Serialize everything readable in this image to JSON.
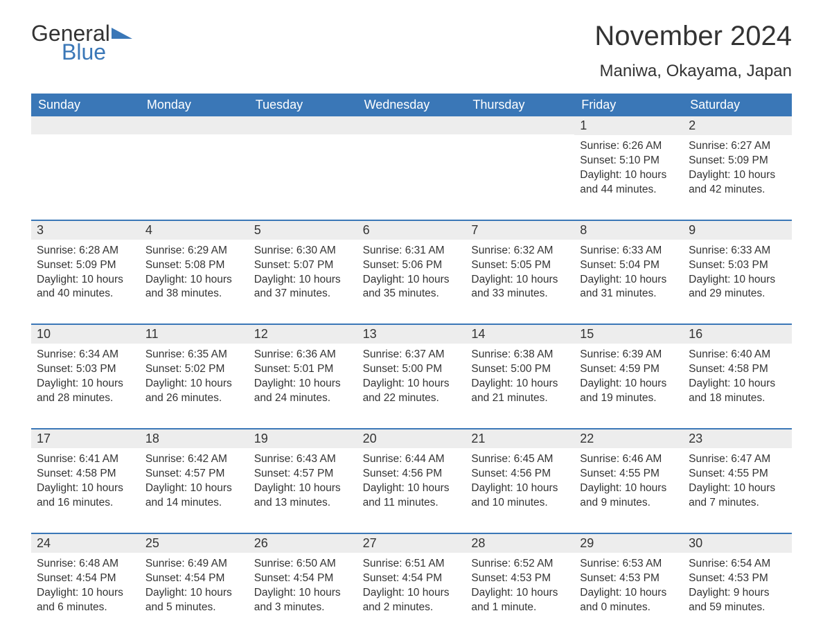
{
  "logo": {
    "text1": "General",
    "text2": "Blue"
  },
  "title": "November 2024",
  "location": "Maniwa, Okayama, Japan",
  "colors": {
    "header_bg": "#3a77b7",
    "header_text": "#ffffff",
    "daynum_bg": "#ededed",
    "text": "#333333",
    "row_border": "#3a77b7",
    "page_bg": "#ffffff"
  },
  "day_names": [
    "Sunday",
    "Monday",
    "Tuesday",
    "Wednesday",
    "Thursday",
    "Friday",
    "Saturday"
  ],
  "weeks": [
    [
      null,
      null,
      null,
      null,
      null,
      {
        "n": "1",
        "sunrise": "Sunrise: 6:26 AM",
        "sunset": "Sunset: 5:10 PM",
        "daylight": "Daylight: 10 hours and 44 minutes."
      },
      {
        "n": "2",
        "sunrise": "Sunrise: 6:27 AM",
        "sunset": "Sunset: 5:09 PM",
        "daylight": "Daylight: 10 hours and 42 minutes."
      }
    ],
    [
      {
        "n": "3",
        "sunrise": "Sunrise: 6:28 AM",
        "sunset": "Sunset: 5:09 PM",
        "daylight": "Daylight: 10 hours and 40 minutes."
      },
      {
        "n": "4",
        "sunrise": "Sunrise: 6:29 AM",
        "sunset": "Sunset: 5:08 PM",
        "daylight": "Daylight: 10 hours and 38 minutes."
      },
      {
        "n": "5",
        "sunrise": "Sunrise: 6:30 AM",
        "sunset": "Sunset: 5:07 PM",
        "daylight": "Daylight: 10 hours and 37 minutes."
      },
      {
        "n": "6",
        "sunrise": "Sunrise: 6:31 AM",
        "sunset": "Sunset: 5:06 PM",
        "daylight": "Daylight: 10 hours and 35 minutes."
      },
      {
        "n": "7",
        "sunrise": "Sunrise: 6:32 AM",
        "sunset": "Sunset: 5:05 PM",
        "daylight": "Daylight: 10 hours and 33 minutes."
      },
      {
        "n": "8",
        "sunrise": "Sunrise: 6:33 AM",
        "sunset": "Sunset: 5:04 PM",
        "daylight": "Daylight: 10 hours and 31 minutes."
      },
      {
        "n": "9",
        "sunrise": "Sunrise: 6:33 AM",
        "sunset": "Sunset: 5:03 PM",
        "daylight": "Daylight: 10 hours and 29 minutes."
      }
    ],
    [
      {
        "n": "10",
        "sunrise": "Sunrise: 6:34 AM",
        "sunset": "Sunset: 5:03 PM",
        "daylight": "Daylight: 10 hours and 28 minutes."
      },
      {
        "n": "11",
        "sunrise": "Sunrise: 6:35 AM",
        "sunset": "Sunset: 5:02 PM",
        "daylight": "Daylight: 10 hours and 26 minutes."
      },
      {
        "n": "12",
        "sunrise": "Sunrise: 6:36 AM",
        "sunset": "Sunset: 5:01 PM",
        "daylight": "Daylight: 10 hours and 24 minutes."
      },
      {
        "n": "13",
        "sunrise": "Sunrise: 6:37 AM",
        "sunset": "Sunset: 5:00 PM",
        "daylight": "Daylight: 10 hours and 22 minutes."
      },
      {
        "n": "14",
        "sunrise": "Sunrise: 6:38 AM",
        "sunset": "Sunset: 5:00 PM",
        "daylight": "Daylight: 10 hours and 21 minutes."
      },
      {
        "n": "15",
        "sunrise": "Sunrise: 6:39 AM",
        "sunset": "Sunset: 4:59 PM",
        "daylight": "Daylight: 10 hours and 19 minutes."
      },
      {
        "n": "16",
        "sunrise": "Sunrise: 6:40 AM",
        "sunset": "Sunset: 4:58 PM",
        "daylight": "Daylight: 10 hours and 18 minutes."
      }
    ],
    [
      {
        "n": "17",
        "sunrise": "Sunrise: 6:41 AM",
        "sunset": "Sunset: 4:58 PM",
        "daylight": "Daylight: 10 hours and 16 minutes."
      },
      {
        "n": "18",
        "sunrise": "Sunrise: 6:42 AM",
        "sunset": "Sunset: 4:57 PM",
        "daylight": "Daylight: 10 hours and 14 minutes."
      },
      {
        "n": "19",
        "sunrise": "Sunrise: 6:43 AM",
        "sunset": "Sunset: 4:57 PM",
        "daylight": "Daylight: 10 hours and 13 minutes."
      },
      {
        "n": "20",
        "sunrise": "Sunrise: 6:44 AM",
        "sunset": "Sunset: 4:56 PM",
        "daylight": "Daylight: 10 hours and 11 minutes."
      },
      {
        "n": "21",
        "sunrise": "Sunrise: 6:45 AM",
        "sunset": "Sunset: 4:56 PM",
        "daylight": "Daylight: 10 hours and 10 minutes."
      },
      {
        "n": "22",
        "sunrise": "Sunrise: 6:46 AM",
        "sunset": "Sunset: 4:55 PM",
        "daylight": "Daylight: 10 hours and 9 minutes."
      },
      {
        "n": "23",
        "sunrise": "Sunrise: 6:47 AM",
        "sunset": "Sunset: 4:55 PM",
        "daylight": "Daylight: 10 hours and 7 minutes."
      }
    ],
    [
      {
        "n": "24",
        "sunrise": "Sunrise: 6:48 AM",
        "sunset": "Sunset: 4:54 PM",
        "daylight": "Daylight: 10 hours and 6 minutes."
      },
      {
        "n": "25",
        "sunrise": "Sunrise: 6:49 AM",
        "sunset": "Sunset: 4:54 PM",
        "daylight": "Daylight: 10 hours and 5 minutes."
      },
      {
        "n": "26",
        "sunrise": "Sunrise: 6:50 AM",
        "sunset": "Sunset: 4:54 PM",
        "daylight": "Daylight: 10 hours and 3 minutes."
      },
      {
        "n": "27",
        "sunrise": "Sunrise: 6:51 AM",
        "sunset": "Sunset: 4:54 PM",
        "daylight": "Daylight: 10 hours and 2 minutes."
      },
      {
        "n": "28",
        "sunrise": "Sunrise: 6:52 AM",
        "sunset": "Sunset: 4:53 PM",
        "daylight": "Daylight: 10 hours and 1 minute."
      },
      {
        "n": "29",
        "sunrise": "Sunrise: 6:53 AM",
        "sunset": "Sunset: 4:53 PM",
        "daylight": "Daylight: 10 hours and 0 minutes."
      },
      {
        "n": "30",
        "sunrise": "Sunrise: 6:54 AM",
        "sunset": "Sunset: 4:53 PM",
        "daylight": "Daylight: 9 hours and 59 minutes."
      }
    ]
  ]
}
